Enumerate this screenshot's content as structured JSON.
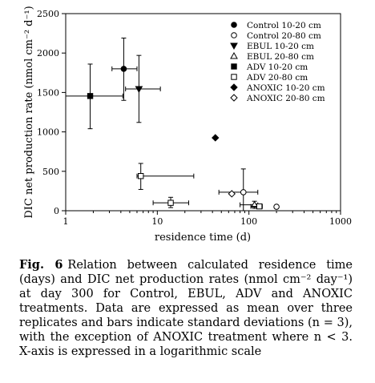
{
  "chart_data": {
    "type": "scatter",
    "title": "",
    "xlabel": "residence time (d)",
    "ylabel": "DIC net production rate (nmol cm⁻² d⁻¹)",
    "xscale": "log",
    "xlim": [
      1,
      1000
    ],
    "ylim": [
      0,
      2500
    ],
    "xticks": [
      "1",
      "10",
      "100",
      "1000"
    ],
    "yticks": [
      "0",
      "500",
      "1000",
      "1500",
      "2000",
      "2500"
    ],
    "grid": false,
    "legend_position": "top-right",
    "series": [
      {
        "name": "Control 10-20 cm",
        "marker": "filled-circle",
        "points": [
          {
            "x": 4.3,
            "y": 1800,
            "xerr": [
              3.2,
              6.0
            ],
            "yerr": [
              1400,
              2190
            ]
          }
        ]
      },
      {
        "name": "Control 20-80 cm",
        "marker": "open-circle",
        "points": [
          {
            "x": 87,
            "y": 235,
            "xerr": [
              47,
              125
            ],
            "yerr": [
              0,
              530
            ]
          },
          {
            "x": 200,
            "y": 50
          }
        ]
      },
      {
        "name": "EBUL 10-20 cm",
        "marker": "filled-triangle-down",
        "points": [
          {
            "x": 6.3,
            "y": 1545,
            "xerr": [
              4.5,
              10.8
            ],
            "yerr": [
              1120,
              1970
            ]
          }
        ]
      },
      {
        "name": "EBUL 20-80 cm",
        "marker": "open-triangle-up",
        "points": [
          {
            "x": 115,
            "y": 75,
            "xerr": [
              80,
              125
            ],
            "yerr": [
              30,
              120
            ]
          }
        ]
      },
      {
        "name": "ADV 10-20 cm",
        "marker": "filled-square",
        "points": [
          {
            "x": 1.85,
            "y": 1455,
            "xerr": [
              1.0,
              4.2
            ],
            "yerr": [
              1040,
              1860
            ]
          }
        ]
      },
      {
        "name": "ADV 20-80 cm",
        "marker": "open-square",
        "points": [
          {
            "x": 6.6,
            "y": 440,
            "xerr": [
              6.0,
              25
            ],
            "yerr": [
              270,
              600
            ]
          },
          {
            "x": 14,
            "y": 100,
            "xerr": [
              9,
              22
            ],
            "yerr": [
              40,
              170
            ]
          },
          {
            "x": 130,
            "y": 55,
            "xerr": [
              105,
              140
            ]
          }
        ]
      },
      {
        "name": "ANOXIC 10-20 cm",
        "marker": "filled-diamond",
        "points": [
          {
            "x": 43,
            "y": 925
          }
        ]
      },
      {
        "name": "ANOXIC 20-80 cm",
        "marker": "open-diamond",
        "points": [
          {
            "x": 65,
            "y": 215
          }
        ]
      }
    ]
  },
  "caption": {
    "label": "Fig. 6",
    "text": "Relation between calculated residence time (days) and DIC net production rates (nmol cm⁻² day⁻¹) at day 300 for Control, EBUL, ADV and ANOXIC treatments. Data are expressed as mean over three replicates and bars indicate standard deviations (n = 3), with the exception of ANOXIC treatment where n < 3. X-axis is expressed in a logarithmic scale"
  }
}
